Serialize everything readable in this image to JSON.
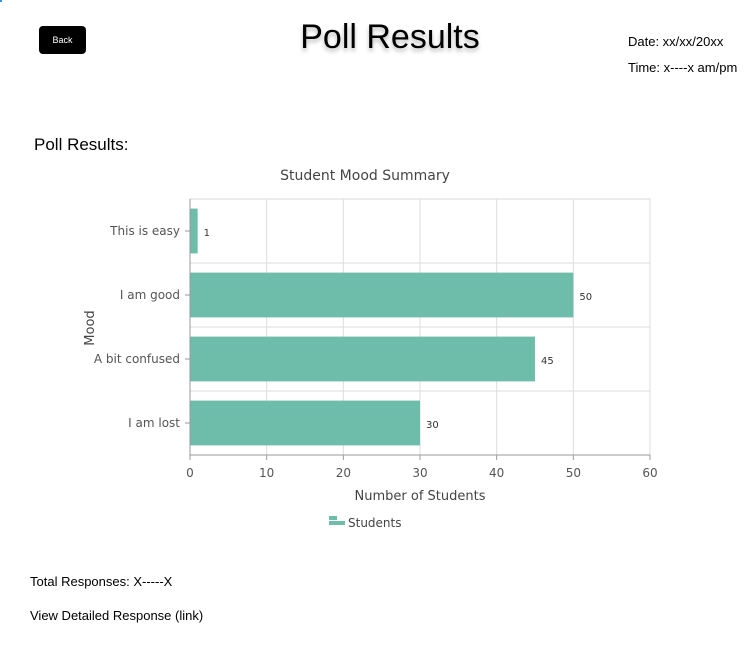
{
  "header": {
    "back_label": "Back",
    "title": "Poll Results",
    "date": "Date: xx/xx/20xx",
    "time": "Time: x----x am/pm"
  },
  "section_heading": "Poll Results:",
  "chart_data": {
    "type": "bar",
    "orientation": "horizontal",
    "title": "Student Mood Summary",
    "xlabel": "Number of Students",
    "ylabel": "Mood",
    "categories": [
      "This is easy",
      "I am good",
      "A bit confused",
      "I am lost"
    ],
    "series": [
      {
        "name": "Students",
        "values": [
          1,
          50,
          45,
          30
        ]
      }
    ],
    "xlim": [
      0,
      60
    ],
    "xticks": [
      0,
      10,
      20,
      30,
      40,
      50,
      60
    ],
    "grid": true,
    "legend": "bottom",
    "bar_color": "#6dbdaa"
  },
  "footer": {
    "total_responses": "Total Responses: X-----X",
    "detail_link": "View Detailed Response (link)"
  }
}
